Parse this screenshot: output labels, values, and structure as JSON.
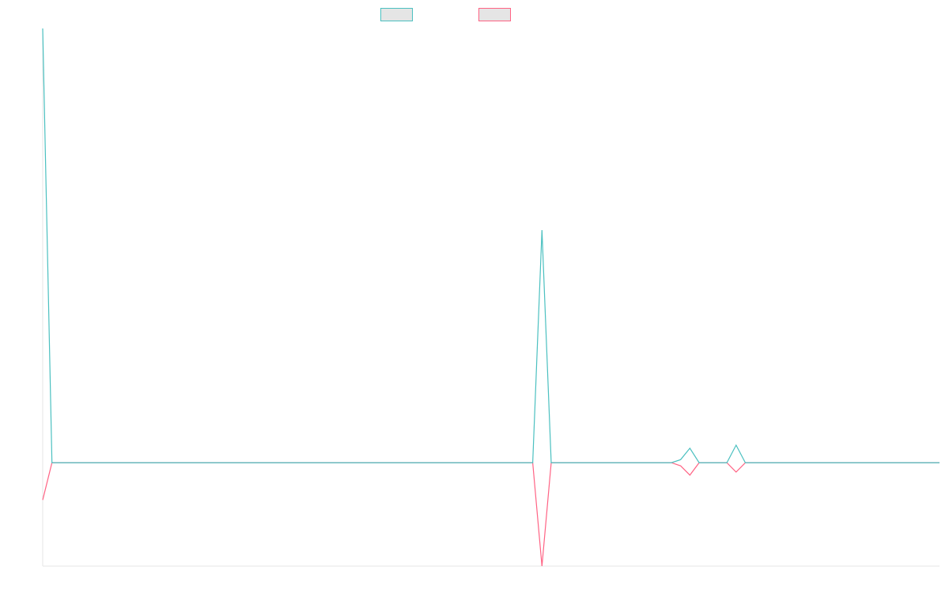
{
  "chart_data": {
    "type": "line",
    "title": "",
    "xlabel": "",
    "ylabel": "",
    "ylim": [
      -1,
      4.2
    ],
    "grid": false,
    "legend": "top-center",
    "x": [
      0,
      1,
      2,
      3,
      4,
      5,
      6,
      7,
      8,
      9,
      10,
      11,
      12,
      13,
      14,
      15,
      16,
      17,
      18,
      19,
      20,
      21,
      22,
      23,
      24,
      25,
      26,
      27,
      28,
      29,
      30,
      31,
      32,
      33,
      34,
      35,
      36,
      37,
      38,
      39,
      40,
      41,
      42,
      43,
      44,
      45,
      46,
      47,
      48,
      49,
      50,
      51,
      52,
      53,
      54,
      55,
      56,
      57,
      58,
      59,
      60,
      61,
      62,
      63,
      64,
      65,
      66,
      67,
      68,
      69,
      70,
      71,
      72,
      73,
      74,
      75,
      76,
      77,
      78,
      79,
      80,
      81,
      82,
      83,
      84,
      85,
      86,
      87,
      88,
      89,
      90,
      91,
      92,
      93,
      94,
      95,
      96,
      97
    ],
    "series": [
      {
        "color": "#4bc0c0",
        "fill": "#e5e5e5",
        "values": [
          4.2,
          0,
          0,
          0,
          0,
          0,
          0,
          0,
          0,
          0,
          0,
          0,
          0,
          0,
          0,
          0,
          0,
          0,
          0,
          0,
          0,
          0,
          0,
          0,
          0,
          0,
          0,
          0,
          0,
          0,
          0,
          0,
          0,
          0,
          0,
          0,
          0,
          0,
          0,
          0,
          0,
          0,
          0,
          0,
          0,
          0,
          0,
          0,
          0,
          0,
          0,
          0,
          0,
          0,
          2.25,
          0,
          0,
          0,
          0,
          0,
          0,
          0,
          0,
          0,
          0,
          0,
          0,
          0,
          0,
          0.03,
          0.14,
          0,
          0,
          0,
          0,
          0.17,
          0,
          0,
          0,
          0,
          0,
          0,
          0,
          0,
          0,
          0,
          0,
          0,
          0,
          0,
          0,
          0,
          0,
          0,
          0,
          0,
          0,
          0
        ]
      },
      {
        "color": "#ff6384",
        "fill": "#e5e5e5",
        "values": [
          -0.36,
          0,
          0,
          0,
          0,
          0,
          0,
          0,
          0,
          0,
          0,
          0,
          0,
          0,
          0,
          0,
          0,
          0,
          0,
          0,
          0,
          0,
          0,
          0,
          0,
          0,
          0,
          0,
          0,
          0,
          0,
          0,
          0,
          0,
          0,
          0,
          0,
          0,
          0,
          0,
          0,
          0,
          0,
          0,
          0,
          0,
          0,
          0,
          0,
          0,
          0,
          0,
          0,
          0,
          -1,
          0,
          0,
          0,
          0,
          0,
          0,
          0,
          0,
          0,
          0,
          0,
          0,
          0,
          0,
          -0.03,
          -0.12,
          0,
          0,
          0,
          0,
          -0.09,
          0,
          0,
          0,
          0,
          0,
          0,
          0,
          0,
          0,
          0,
          0,
          0,
          0,
          0,
          0,
          0,
          0,
          0,
          0,
          0,
          0,
          0
        ]
      }
    ]
  }
}
